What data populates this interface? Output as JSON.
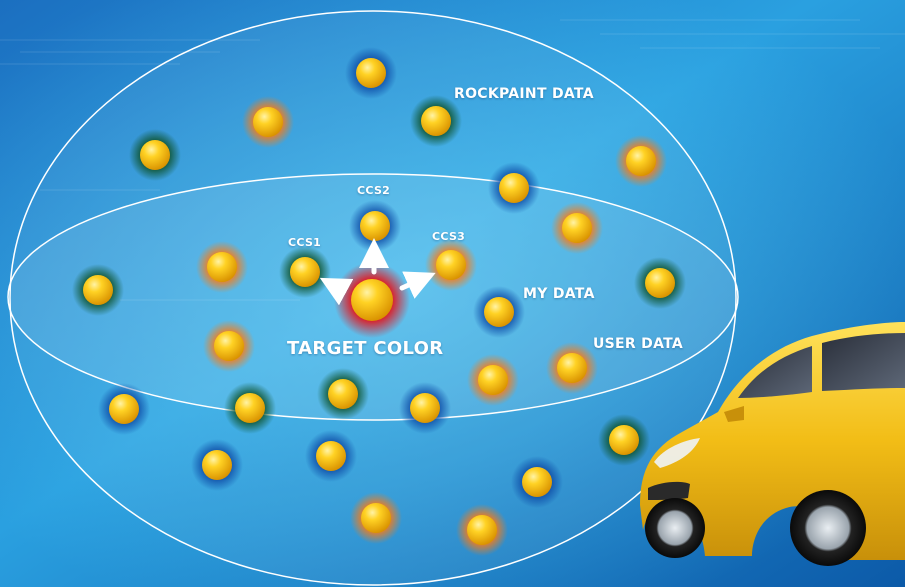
{
  "labels": {
    "rockpaint_data": "ROCKPAINT DATA",
    "my_data": "MY DATA",
    "user_data": "USER DATA",
    "target_color": "TARGET COLOR",
    "ccs1": "CCS1",
    "ccs2": "CCS2",
    "ccs3": "CCS3"
  },
  "colors": {
    "background_light": "#37b6ea",
    "background_dark": "#0d4f9c",
    "sphere_core": "#ffc20f",
    "halo_blue": "#1561b8",
    "halo_green": "#0e5a2a",
    "halo_orange": "#ff7b10",
    "halo_red": "#e3161d",
    "car_body": "#f3c11b"
  },
  "dot_groups": {
    "blue": "rockpaint data points",
    "green": "my data points",
    "orange": "user data points",
    "red": "target color"
  }
}
